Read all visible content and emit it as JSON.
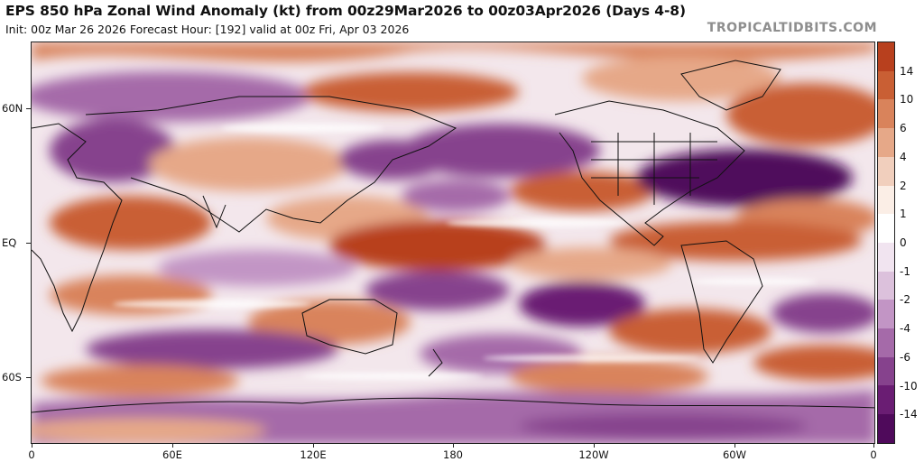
{
  "header": {
    "title": "EPS 850 hPa Zonal Wind Anomaly (kt) from 00z29Mar2026 to 00z03Apr2026 (Days 4-8)",
    "subtitle": "Init: 00z Mar 26 2026   Forecast Hour: [192]   valid at 00z Fri, Apr 03 2026",
    "brand": "TROPICALTIDBITS.COM"
  },
  "axes": {
    "lat_labels": [
      "60N",
      "EQ",
      "60S"
    ],
    "lon_labels": [
      "0",
      "60E",
      "120E",
      "180",
      "120W",
      "60W",
      "0"
    ]
  },
  "colorbar": {
    "labels": [
      "14",
      "10",
      "6",
      "4",
      "2",
      "1",
      "0",
      "-1",
      "-2",
      "-4",
      "-6",
      "-10",
      "-14"
    ],
    "colors": [
      "#b8401e",
      "#c95f34",
      "#d9835b",
      "#e6a888",
      "#f1cfbd",
      "#fbeee6",
      "#ffffff",
      "#f1e4f0",
      "#dcc1dc",
      "#c295c5",
      "#a56aa9",
      "#86428d",
      "#6a1d73",
      "#4f0a5b"
    ]
  },
  "map": {
    "positive_color": "#c45a2e",
    "negative_color": "#7a2f85",
    "land_outline_color": "#111111"
  }
}
